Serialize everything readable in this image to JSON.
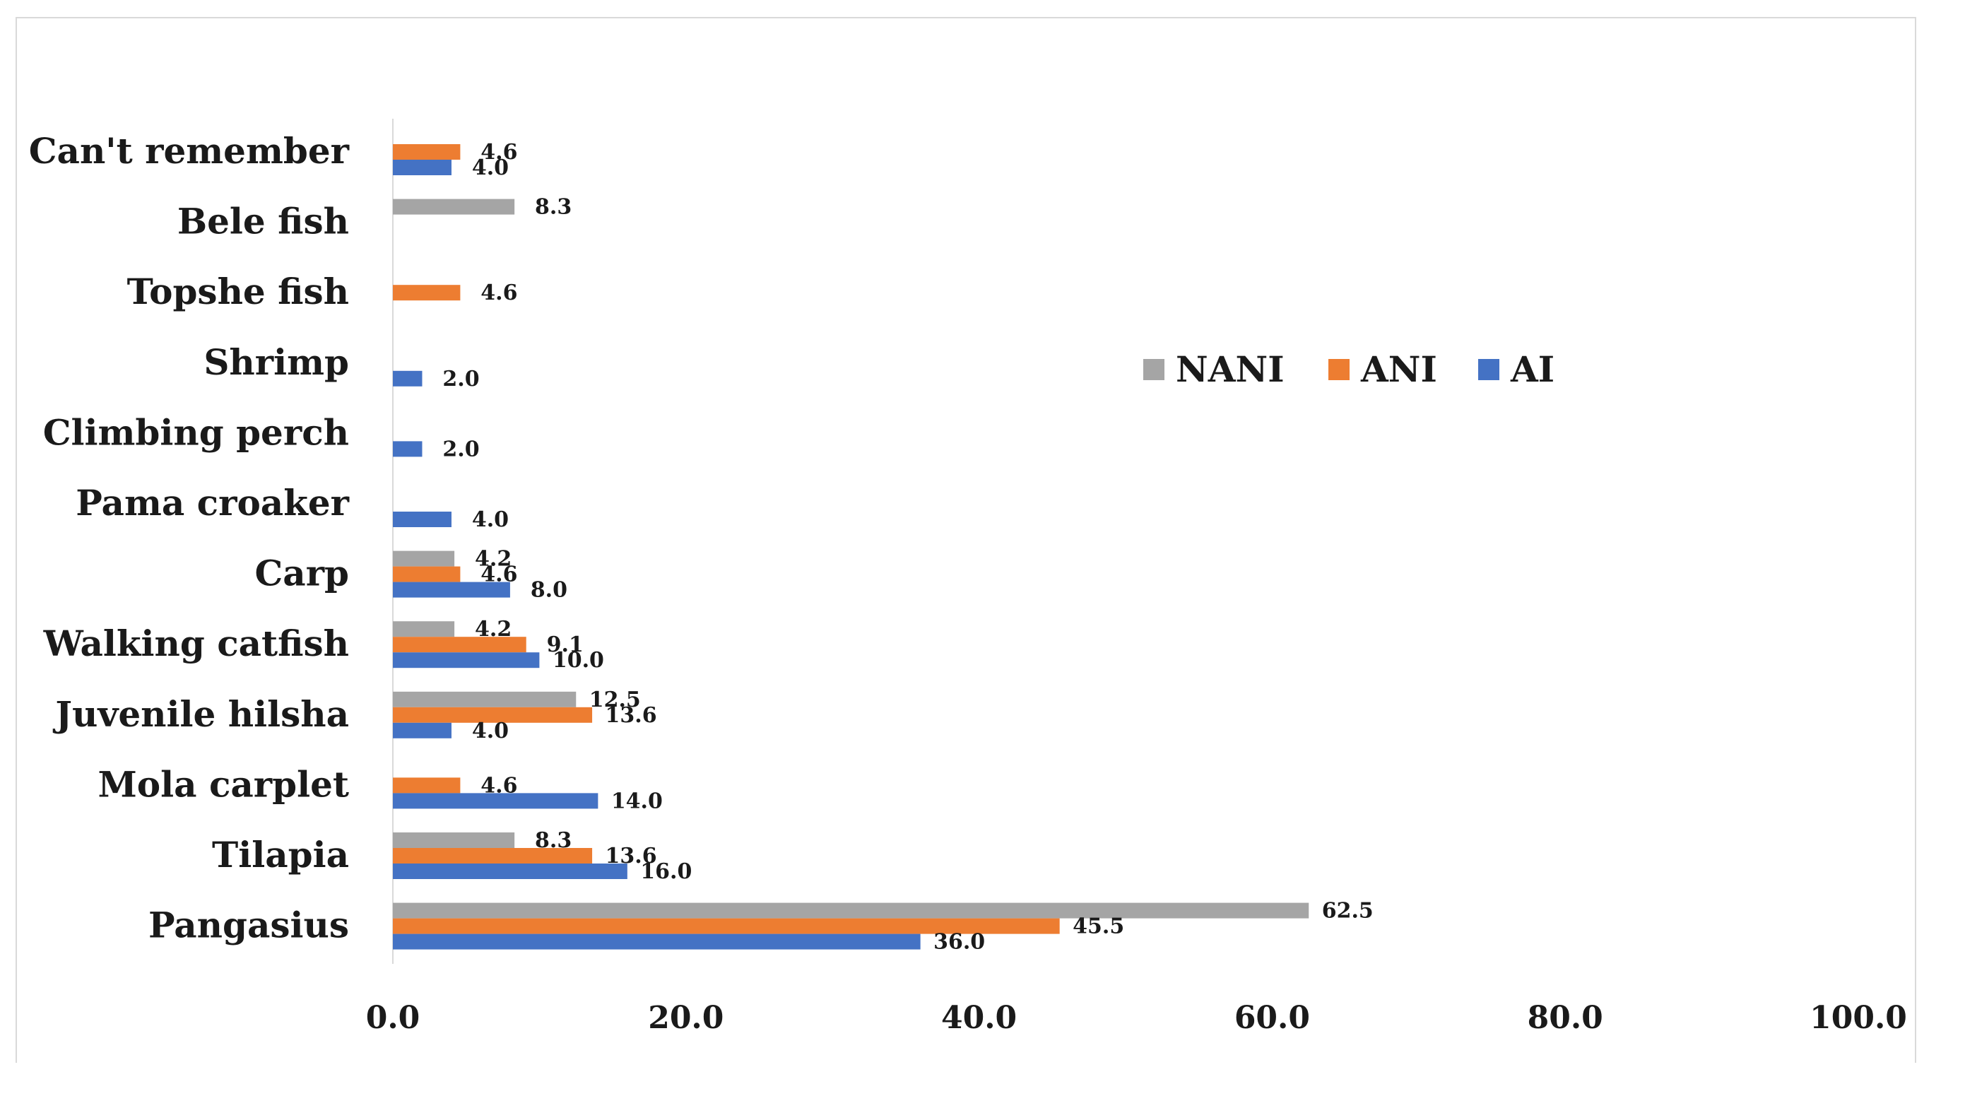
{
  "chart_data": {
    "type": "bar",
    "orientation": "horizontal",
    "title": "",
    "xlabel": "",
    "ylabel": "",
    "xlim": [
      0,
      100
    ],
    "x_ticks": [
      "0.0",
      "20.0",
      "40.0",
      "60.0",
      "80.0",
      "100.0"
    ],
    "x_tick_values": [
      0,
      20,
      40,
      60,
      80,
      100
    ],
    "legend_position": "center-right",
    "categories": [
      "Can't remember",
      "Bele fish",
      "Topshe fish",
      "Shrimp",
      "Climbing perch",
      "Pama croaker",
      "Carp",
      "Walking catfish",
      "Juvenile hilsha",
      "Mola carplet",
      "Tilapia",
      "Pangasius"
    ],
    "series": [
      {
        "name": "NANI",
        "color": "#a5a5a5",
        "values": [
          null,
          8.3,
          null,
          null,
          null,
          null,
          4.2,
          4.2,
          12.5,
          null,
          8.3,
          62.5
        ],
        "labels": [
          null,
          "8.3",
          null,
          null,
          null,
          null,
          "4.2",
          "4.2",
          "12.5",
          null,
          "8.3",
          "62.5"
        ]
      },
      {
        "name": "ANI",
        "color": "#ed7d31",
        "values": [
          4.6,
          null,
          4.6,
          null,
          null,
          null,
          4.6,
          9.1,
          13.6,
          4.6,
          13.6,
          45.5
        ],
        "labels": [
          "4.6",
          null,
          "4.6",
          null,
          null,
          null,
          "4.6",
          "9.1",
          "13.6",
          "4.6",
          "13.6",
          "45.5"
        ]
      },
      {
        "name": "AI",
        "color": "#4472c4",
        "values": [
          4.0,
          null,
          null,
          2.0,
          2.0,
          4.0,
          8.0,
          10.0,
          4.0,
          14.0,
          16.0,
          36.0
        ],
        "labels": [
          "4.0",
          null,
          null,
          "2.0",
          "2.0",
          "4.0",
          "8.0",
          "10.0",
          "4.0",
          "14.0",
          "16.0",
          "36.0"
        ]
      }
    ],
    "legend_order": [
      "NANI",
      "ANI",
      "AI"
    ]
  }
}
